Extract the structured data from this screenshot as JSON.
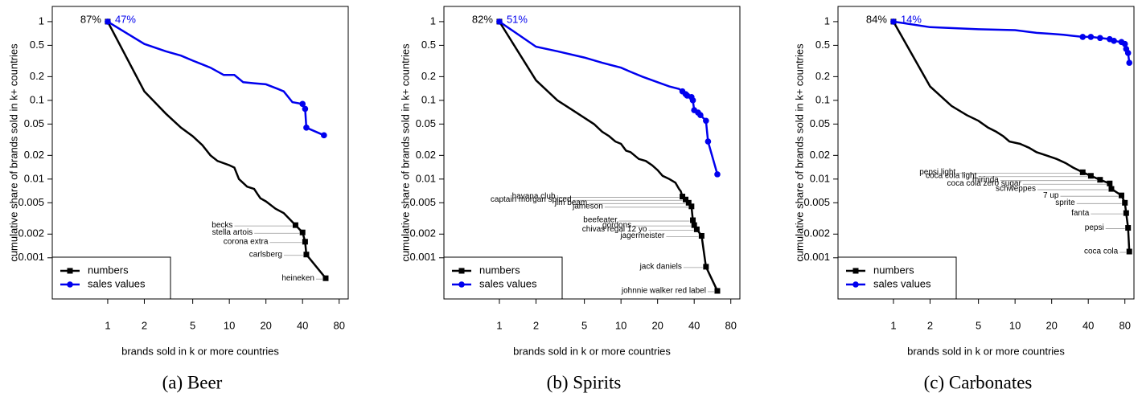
{
  "chart_data": [
    {
      "type": "line",
      "caption": "(a) Beer",
      "xlabel": "brands sold in k or more countries",
      "ylabel": "cumulative share of brands sold in k+ countries",
      "log_x": true,
      "log_y": true,
      "xlim": [
        0.35,
        95
      ],
      "ylim": [
        0.0003,
        1.56
      ],
      "xticks": [
        1,
        2,
        5,
        10,
        20,
        40,
        80
      ],
      "yticks": [
        1,
        0.5,
        0.2,
        0.1,
        0.05,
        0.02,
        0.01,
        0.005,
        0.002,
        0.001
      ],
      "legend": "bottomleft",
      "series": [
        {
          "name": "numbers",
          "color": "#000000",
          "share_label": "87%",
          "x": [
            1,
            2,
            3,
            4,
            5,
            6,
            7,
            8,
            10,
            11,
            12,
            14,
            16,
            17,
            18,
            20,
            24,
            28,
            35,
            40,
            42,
            43,
            62
          ],
          "values": [
            1,
            0.13,
            0.068,
            0.045,
            0.035,
            0.027,
            0.02,
            0.017,
            0.015,
            0.014,
            0.01,
            0.008,
            0.0075,
            0.0065,
            0.0057,
            0.0052,
            0.0042,
            0.0037,
            0.0026,
            0.0021,
            0.0016,
            0.0011,
            0.00055
          ],
          "point_labels": [
            null,
            null,
            null,
            null,
            null,
            null,
            null,
            null,
            null,
            null,
            null,
            null,
            null,
            null,
            null,
            null,
            null,
            null,
            "becks",
            "stella artois",
            "corona extra",
            "carlsberg",
            "heineken"
          ]
        },
        {
          "name": "sales values",
          "color": "#0000ee",
          "share_label": "47%",
          "x": [
            1,
            2,
            3,
            4,
            5,
            7,
            9,
            11,
            13,
            16,
            20,
            25,
            28,
            33,
            40,
            42,
            43,
            60
          ],
          "values": [
            1,
            0.52,
            0.42,
            0.37,
            0.32,
            0.26,
            0.21,
            0.21,
            0.17,
            0.165,
            0.16,
            0.14,
            0.13,
            0.095,
            0.09,
            0.078,
            0.045,
            0.036
          ]
        }
      ]
    },
    {
      "type": "line",
      "caption": "(b) Spirits",
      "xlabel": "brands sold in k or more countries",
      "ylabel": "cumulative share of brands sold in k+ countries",
      "log_x": true,
      "log_y": true,
      "xlim": [
        0.35,
        95
      ],
      "ylim": [
        0.0003,
        1.56
      ],
      "xticks": [
        1,
        2,
        5,
        10,
        20,
        40,
        80
      ],
      "yticks": [
        1,
        0.5,
        0.2,
        0.1,
        0.05,
        0.02,
        0.01,
        0.005,
        0.002,
        0.001
      ],
      "legend": "bottomleft",
      "series": [
        {
          "name": "numbers",
          "color": "#000000",
          "share_label": "82%",
          "x": [
            1,
            2,
            3,
            4,
            5,
            6,
            7,
            8,
            9,
            10,
            11,
            12,
            14,
            16,
            18,
            20,
            22,
            25,
            28,
            30,
            31,
            32,
            34,
            36,
            38,
            39,
            40,
            42,
            46,
            50,
            62
          ],
          "values": [
            1,
            0.18,
            0.1,
            0.075,
            0.06,
            0.05,
            0.04,
            0.035,
            0.03,
            0.028,
            0.023,
            0.022,
            0.018,
            0.017,
            0.015,
            0.013,
            0.011,
            0.01,
            0.009,
            0.0075,
            0.007,
            0.006,
            0.0055,
            0.005,
            0.0045,
            0.003,
            0.0026,
            0.0023,
            0.0019,
            0.00077,
            0.00038
          ],
          "point_labels": [
            null,
            null,
            null,
            null,
            null,
            null,
            null,
            null,
            null,
            null,
            null,
            null,
            null,
            null,
            null,
            null,
            null,
            null,
            null,
            null,
            null,
            "havana club",
            "captain morgan spiced",
            "jim beam",
            "jameson",
            "beefeater",
            "gordons",
            "chivas regal 12 yo",
            "jagermeister",
            "jack daniels",
            "johnnie walker red label"
          ]
        },
        {
          "name": "sales values",
          "color": "#0000ee",
          "share_label": "51%",
          "x": [
            1,
            2,
            3,
            5,
            7,
            10,
            12,
            15,
            20,
            25,
            30,
            32,
            34,
            35,
            38,
            39,
            40,
            43,
            45,
            50,
            52,
            62
          ],
          "values": [
            1,
            0.48,
            0.42,
            0.35,
            0.3,
            0.26,
            0.23,
            0.2,
            0.17,
            0.15,
            0.14,
            0.13,
            0.12,
            0.115,
            0.11,
            0.1,
            0.075,
            0.07,
            0.065,
            0.055,
            0.03,
            0.0115
          ]
        }
      ]
    },
    {
      "type": "line",
      "caption": "(c) Carbonates",
      "xlabel": "brands sold in k or more countries",
      "ylabel": "cumulative share of brands sold in k+ countries",
      "log_x": true,
      "log_y": true,
      "xlim": [
        0.35,
        95
      ],
      "ylim": [
        0.0003,
        1.56
      ],
      "xticks": [
        1,
        2,
        5,
        10,
        20,
        40,
        80
      ],
      "yticks": [
        1,
        0.5,
        0.2,
        0.1,
        0.05,
        0.02,
        0.01,
        0.005,
        0.002,
        0.001
      ],
      "legend": "bottomleft",
      "series": [
        {
          "name": "numbers",
          "color": "#000000",
          "share_label": "84%",
          "x": [
            1,
            2,
            3,
            4,
            5,
            6,
            7,
            8,
            9,
            11,
            13,
            15,
            18,
            22,
            26,
            30,
            36,
            42,
            50,
            60,
            62,
            75,
            80,
            82,
            85,
            87
          ],
          "values": [
            1,
            0.15,
            0.085,
            0.065,
            0.055,
            0.045,
            0.04,
            0.035,
            0.03,
            0.028,
            0.025,
            0.022,
            0.02,
            0.018,
            0.016,
            0.014,
            0.0122,
            0.011,
            0.0098,
            0.0088,
            0.0075,
            0.0062,
            0.005,
            0.0037,
            0.0024,
            0.0012
          ],
          "point_labels": [
            null,
            null,
            null,
            null,
            null,
            null,
            null,
            null,
            null,
            null,
            null,
            null,
            null,
            null,
            null,
            null,
            "pepsi light",
            "coca cola light",
            "mirinda",
            "coca cola zero sugar",
            "schweppes",
            "7 up",
            "sprite",
            "fanta",
            "pepsi",
            "coca cola"
          ]
        },
        {
          "name": "sales values",
          "color": "#0000ee",
          "share_label": "14%",
          "x": [
            1,
            2,
            5,
            10,
            15,
            20,
            25,
            30,
            36,
            42,
            50,
            60,
            65,
            75,
            80,
            82,
            85,
            87
          ],
          "values": [
            1,
            0.85,
            0.8,
            0.78,
            0.72,
            0.7,
            0.68,
            0.66,
            0.64,
            0.64,
            0.62,
            0.6,
            0.57,
            0.55,
            0.52,
            0.45,
            0.4,
            0.3
          ]
        }
      ]
    }
  ]
}
